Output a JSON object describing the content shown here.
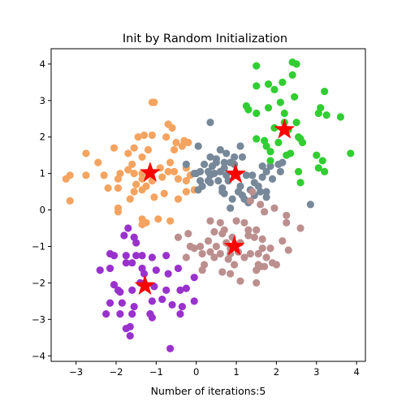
{
  "chart_data": {
    "type": "scatter",
    "title": "Init by Random Initialization",
    "xlabel": "Number of iterations:5",
    "ylabel": "",
    "xlim": [
      -3.62,
      4.22
    ],
    "ylim": [
      -4.15,
      4.42
    ],
    "xticks": [
      -3,
      -2,
      -1,
      0,
      1,
      2,
      3,
      4
    ],
    "yticks": [
      -4,
      -3,
      -2,
      -1,
      0,
      1,
      2,
      3,
      4
    ],
    "grid": false,
    "clusters": [
      {
        "color": "#F4A460",
        "points": [
          [
            -1.1,
            2.95
          ],
          [
            -1.05,
            2.95
          ],
          [
            -0.7,
            2.35
          ],
          [
            -1.3,
            2.05
          ],
          [
            -1.45,
            2.0
          ],
          [
            -1.1,
            2.05
          ],
          [
            -0.6,
            2.25
          ],
          [
            -0.75,
            2.0
          ],
          [
            -0.3,
            1.9
          ],
          [
            -0.2,
            1.85
          ],
          [
            -0.35,
            1.75
          ],
          [
            -0.55,
            1.65
          ],
          [
            -1.55,
            1.7
          ],
          [
            -2.05,
            1.7
          ],
          [
            -1.7,
            1.55
          ],
          [
            -1.2,
            1.65
          ],
          [
            -1.35,
            1.45
          ],
          [
            -1.6,
            1.25
          ],
          [
            -2.75,
            1.55
          ],
          [
            -2.45,
            1.3
          ],
          [
            -1.7,
            1.1
          ],
          [
            -1.9,
            1.0
          ],
          [
            -1.55,
            1.0
          ],
          [
            -1.35,
            1.0
          ],
          [
            -0.9,
            1.15
          ],
          [
            -0.7,
            1.05
          ],
          [
            -0.65,
            1.3
          ],
          [
            -0.55,
            1.05
          ],
          [
            -0.25,
            1.15
          ],
          [
            -0.45,
            0.85
          ],
          [
            -0.25,
            0.8
          ],
          [
            -0.15,
            0.95
          ],
          [
            -0.85,
            0.9
          ],
          [
            -1.1,
            0.8
          ],
          [
            -1.35,
            0.85
          ],
          [
            -1.5,
            0.7
          ],
          [
            -1.95,
            0.85
          ],
          [
            -2.2,
            0.6
          ],
          [
            -2.3,
            0.95
          ],
          [
            -2.75,
            0.95
          ],
          [
            -3.15,
            0.95
          ],
          [
            -3.25,
            0.85
          ],
          [
            -3.15,
            0.25
          ],
          [
            -1.25,
            0.65
          ],
          [
            -1.35,
            0.55
          ],
          [
            -1.05,
            0.35
          ],
          [
            -0.8,
            0.45
          ],
          [
            -0.45,
            0.3
          ],
          [
            -0.25,
            0.5
          ],
          [
            -0.05,
            0.55
          ],
          [
            -1.55,
            0.5
          ],
          [
            -1.65,
            0.3
          ],
          [
            -1.95,
            0.6
          ],
          [
            -1.95,
            0.05
          ],
          [
            -1.95,
            -0.05
          ],
          [
            -1.35,
            -0.25
          ],
          [
            -1.35,
            -0.4
          ],
          [
            -1.25,
            -0.35
          ],
          [
            -0.95,
            -0.25
          ],
          [
            -0.65,
            -0.3
          ],
          [
            -0.5,
            1.85
          ]
        ]
      },
      {
        "color": "#778899",
        "points": [
          [
            -0.25,
            1.25
          ],
          [
            0.05,
            1.75
          ],
          [
            0.35,
            2.4
          ],
          [
            0.35,
            1.45
          ],
          [
            0.5,
            1.4
          ],
          [
            0.5,
            1.3
          ],
          [
            0.4,
            1.2
          ],
          [
            0.3,
            1.05
          ],
          [
            0.2,
            1.25
          ],
          [
            0.1,
            1.05
          ],
          [
            0.0,
            1.0
          ],
          [
            -0.05,
            1.0
          ],
          [
            0.6,
            1.65
          ],
          [
            0.75,
            1.55
          ],
          [
            0.95,
            1.45
          ],
          [
            0.85,
            1.3
          ],
          [
            0.7,
            1.3
          ],
          [
            1.1,
            1.75
          ],
          [
            1.15,
            1.45
          ],
          [
            0.95,
            1.25
          ],
          [
            0.7,
            1.15
          ],
          [
            0.6,
            1.05
          ],
          [
            0.45,
            1.0
          ],
          [
            0.35,
            0.95
          ],
          [
            0.3,
            0.8
          ],
          [
            0.55,
            0.8
          ],
          [
            0.75,
            0.95
          ],
          [
            0.8,
            0.8
          ],
          [
            0.65,
            0.6
          ],
          [
            0.1,
            0.8
          ],
          [
            0.05,
            0.55
          ],
          [
            0.35,
            0.75
          ],
          [
            0.15,
            0.65
          ],
          [
            0.65,
            0.5
          ],
          [
            0.7,
            0.45
          ],
          [
            1.25,
            0.95
          ],
          [
            1.1,
            0.65
          ],
          [
            1.05,
            0.5
          ],
          [
            1.15,
            0.4
          ],
          [
            1.35,
            0.55
          ],
          [
            1.45,
            0.75
          ],
          [
            1.4,
            0.95
          ],
          [
            1.55,
            0.65
          ],
          [
            1.6,
            0.5
          ],
          [
            1.75,
            0.5
          ],
          [
            1.75,
            1.05
          ],
          [
            1.65,
            1.2
          ],
          [
            1.85,
            1.2
          ],
          [
            2.1,
            1.05
          ],
          [
            1.9,
            0.85
          ],
          [
            1.65,
            0.9
          ],
          [
            1.75,
            0.35
          ],
          [
            1.45,
            0.4
          ],
          [
            1.3,
            0.2
          ],
          [
            1.2,
            0.3
          ],
          [
            0.9,
            0.3
          ],
          [
            0.85,
            0.05
          ],
          [
            2.15,
            1.3
          ],
          [
            2.85,
            0.15
          ],
          [
            2.05,
            1.25
          ]
        ]
      },
      {
        "color": "#32CD32",
        "points": [
          [
            2.4,
            4.05
          ],
          [
            2.5,
            4.0
          ],
          [
            2.4,
            3.7
          ],
          [
            1.5,
            3.95
          ],
          [
            1.8,
            3.45
          ],
          [
            2.15,
            3.5
          ],
          [
            1.95,
            3.3
          ],
          [
            1.5,
            3.4
          ],
          [
            2.1,
            2.95
          ],
          [
            2.45,
            3.1
          ],
          [
            3.2,
            3.25
          ],
          [
            1.25,
            2.85
          ],
          [
            1.3,
            2.75
          ],
          [
            1.5,
            2.65
          ],
          [
            1.8,
            2.8
          ],
          [
            2.2,
            2.65
          ],
          [
            3.1,
            2.8
          ],
          [
            3.05,
            2.65
          ],
          [
            3.25,
            2.6
          ],
          [
            3.6,
            2.55
          ],
          [
            1.95,
            2.25
          ],
          [
            2.2,
            2.4
          ],
          [
            2.5,
            2.4
          ],
          [
            1.5,
            1.95
          ],
          [
            1.7,
            1.9
          ],
          [
            1.75,
            1.75
          ],
          [
            2.3,
            2.2
          ],
          [
            2.55,
            2.0
          ],
          [
            2.6,
            1.95
          ],
          [
            2.65,
            1.85
          ],
          [
            1.85,
            1.6
          ],
          [
            2.05,
            1.85
          ],
          [
            1.85,
            1.35
          ],
          [
            2.25,
            1.5
          ],
          [
            2.35,
            1.55
          ],
          [
            3.0,
            1.5
          ],
          [
            3.15,
            1.35
          ],
          [
            3.05,
            1.15
          ],
          [
            3.2,
            1.05
          ],
          [
            2.55,
            1.05
          ],
          [
            2.6,
            0.75
          ],
          [
            3.85,
            1.55
          ]
        ]
      },
      {
        "color": "#BC8F8F",
        "points": [
          [
            1.4,
            0.5
          ],
          [
            1.35,
            0.25
          ],
          [
            1.6,
            0.15
          ],
          [
            1.7,
            -0.05
          ],
          [
            1.95,
            0.05
          ],
          [
            2.25,
            -0.15
          ],
          [
            2.25,
            -0.35
          ],
          [
            2.15,
            -0.85
          ],
          [
            2.3,
            -1.1
          ],
          [
            2.6,
            -0.5
          ],
          [
            0.35,
            -0.3
          ],
          [
            0.6,
            -0.35
          ],
          [
            0.7,
            -0.55
          ],
          [
            0.9,
            -0.75
          ],
          [
            1.0,
            -0.3
          ],
          [
            1.2,
            -0.35
          ],
          [
            1.3,
            -0.55
          ],
          [
            1.5,
            -0.55
          ],
          [
            1.65,
            -0.8
          ],
          [
            1.45,
            -0.75
          ],
          [
            1.3,
            -0.7
          ],
          [
            1.1,
            -0.9
          ],
          [
            0.85,
            -1.05
          ],
          [
            0.75,
            -0.9
          ],
          [
            0.65,
            -0.65
          ],
          [
            0.45,
            -0.6
          ],
          [
            0.3,
            -0.85
          ],
          [
            -0.45,
            -0.75
          ],
          [
            -0.2,
            -0.65
          ],
          [
            -0.15,
            -1.0
          ],
          [
            -0.05,
            -1.05
          ],
          [
            0.1,
            -1.0
          ],
          [
            0.15,
            -1.2
          ],
          [
            0.35,
            -1.15
          ],
          [
            0.5,
            -1.0
          ],
          [
            0.6,
            -1.2
          ],
          [
            0.8,
            -1.35
          ],
          [
            0.45,
            -1.3
          ],
          [
            0.65,
            -1.7
          ],
          [
            0.85,
            -1.75
          ],
          [
            0.95,
            -1.5
          ],
          [
            1.2,
            -1.3
          ],
          [
            1.35,
            -1.2
          ],
          [
            1.55,
            -1.2
          ],
          [
            1.65,
            -1.05
          ],
          [
            1.75,
            -1.3
          ],
          [
            1.85,
            -1.05
          ],
          [
            1.9,
            -1.45
          ],
          [
            1.55,
            -1.5
          ],
          [
            1.5,
            -1.65
          ],
          [
            1.6,
            -1.55
          ],
          [
            1.1,
            -1.95
          ],
          [
            1.5,
            -2.0
          ],
          [
            2.0,
            -1.5
          ],
          [
            1.7,
            -1.55
          ],
          [
            1.05,
            -1.15
          ],
          [
            0.2,
            -1.5
          ],
          [
            -0.25,
            -1.3
          ],
          [
            0.15,
            -1.65
          ],
          [
            0.85,
            -1.2
          ]
        ]
      },
      {
        "color": "#9932CC",
        "points": [
          [
            -1.7,
            -0.5
          ],
          [
            -1.8,
            -0.7
          ],
          [
            -1.55,
            -0.75
          ],
          [
            -1.5,
            -0.9
          ],
          [
            -2.15,
            -1.2
          ],
          [
            -2.05,
            -1.25
          ],
          [
            -1.75,
            -1.25
          ],
          [
            -1.5,
            -1.25
          ],
          [
            -1.35,
            -1.25
          ],
          [
            -1.1,
            -1.3
          ],
          [
            -0.75,
            -1.25
          ],
          [
            -2.4,
            -1.65
          ],
          [
            -2.15,
            -1.6
          ],
          [
            -1.75,
            -1.45
          ],
          [
            -1.6,
            -1.45
          ],
          [
            -1.35,
            -1.6
          ],
          [
            -1.0,
            -1.65
          ],
          [
            -0.7,
            -1.75
          ],
          [
            -0.45,
            -1.6
          ],
          [
            -0.05,
            -1.85
          ],
          [
            -2.05,
            -2.05
          ],
          [
            -1.95,
            -2.2
          ],
          [
            -1.9,
            -2.25
          ],
          [
            -1.6,
            -2.2
          ],
          [
            -1.4,
            -2.0
          ],
          [
            -1.05,
            -2.1
          ],
          [
            -0.75,
            -2.2
          ],
          [
            -0.4,
            -2.2
          ],
          [
            -0.25,
            -2.15
          ],
          [
            -2.15,
            -2.55
          ],
          [
            -1.85,
            -2.55
          ],
          [
            -1.55,
            -2.65
          ],
          [
            -1.1,
            -2.5
          ],
          [
            -0.85,
            -2.45
          ],
          [
            -0.6,
            -2.6
          ],
          [
            -0.35,
            -2.65
          ],
          [
            -0.05,
            -2.5
          ],
          [
            -2.25,
            -2.85
          ],
          [
            -1.9,
            -2.85
          ],
          [
            -1.6,
            -2.85
          ],
          [
            -1.15,
            -2.85
          ],
          [
            -1.1,
            -2.95
          ],
          [
            -0.4,
            -2.85
          ],
          [
            -1.75,
            -3.25
          ],
          [
            -1.65,
            -3.2
          ],
          [
            -1.65,
            -3.45
          ],
          [
            -0.65,
            -3.8
          ],
          [
            -1.3,
            -1.75
          ]
        ]
      }
    ],
    "centroids": {
      "color": "#FF0000",
      "points": [
        [
          -1.15,
          1.02
        ],
        [
          0.98,
          0.98
        ],
        [
          2.2,
          2.2
        ],
        [
          0.95,
          -1.0
        ],
        [
          -1.28,
          -2.08
        ]
      ]
    }
  }
}
